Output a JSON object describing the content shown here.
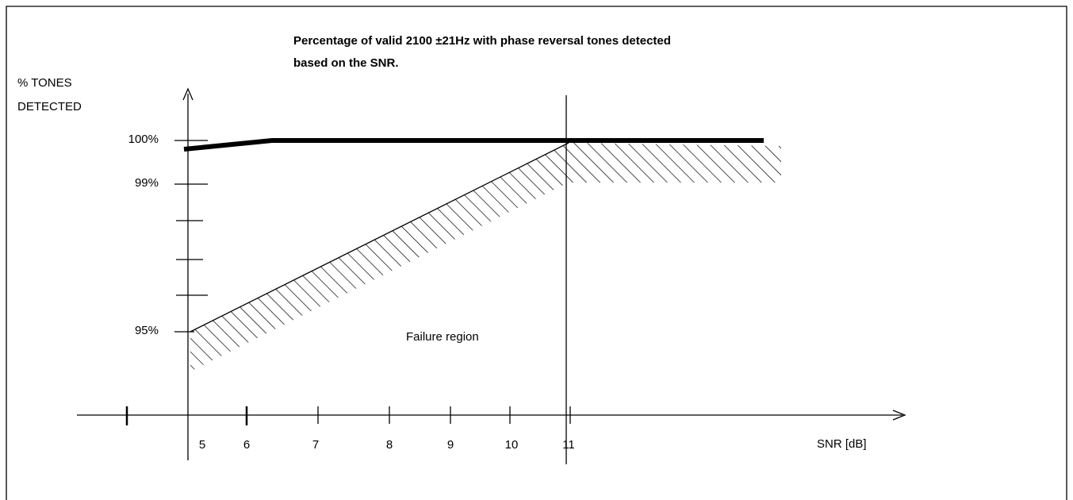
{
  "title": [
    "Percentage of valid 2100 ±21Hz with phase reversal tones detected",
    "based on the SNR."
  ],
  "y_axis": {
    "label": [
      "% TONES",
      "DETECTED"
    ],
    "ticks": [
      "100%",
      "99%",
      "95%"
    ]
  },
  "x_axis": {
    "label": "SNR [dB]",
    "ticks": [
      "5",
      "6",
      "7",
      "8",
      "9",
      "10",
      "11"
    ]
  },
  "region_label": "Failure region"
}
